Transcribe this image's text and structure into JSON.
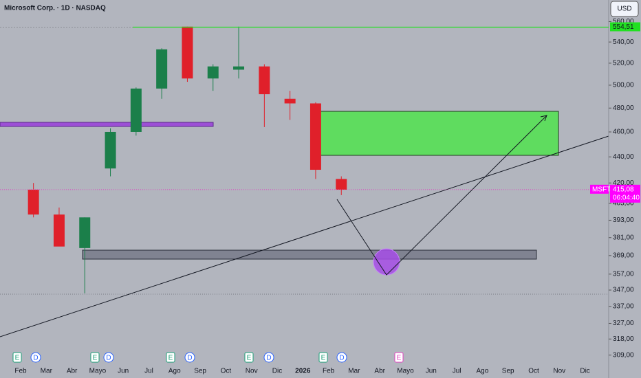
{
  "chart_data": {
    "type": "candlestick",
    "title": "Microsoft Corp. · 1D · NASDAQ",
    "currency": "USD",
    "symbol": "MSFT",
    "categories": [
      "Feb",
      "Mar",
      "Abr",
      "Mayo",
      "Jun",
      "Jul",
      "Ago",
      "Sep",
      "Oct",
      "Nov",
      "Dic",
      "2026",
      "Feb",
      "Mar",
      "Abr",
      "Mayo",
      "Jun",
      "Jul",
      "Ago",
      "Sep",
      "Oct",
      "Nov",
      "Dic"
    ],
    "open": [
      415,
      397,
      374,
      431,
      460,
      497,
      555,
      506,
      514,
      517,
      488,
      484,
      423,
      null,
      null,
      null,
      null,
      null,
      null,
      null,
      null,
      null,
      null
    ],
    "high": [
      420,
      402,
      395,
      463,
      498,
      534,
      555,
      519,
      555,
      519,
      495,
      485,
      425,
      null,
      null,
      null,
      null,
      null,
      null,
      null,
      null,
      null,
      null
    ],
    "low": [
      395,
      376,
      345,
      425,
      457,
      488,
      503,
      495,
      506,
      464,
      470,
      423,
      411,
      null,
      null,
      null,
      null,
      null,
      null,
      null,
      null,
      null,
      null
    ],
    "close": [
      397,
      375,
      395,
      460,
      497,
      533,
      506,
      517,
      517,
      492,
      484,
      430,
      415,
      null,
      null,
      null,
      null,
      null,
      null,
      null,
      null,
      null,
      null
    ],
    "up_color": "#1b7f4a",
    "down_color": "#e0202a",
    "log_scale": true,
    "ylim": [
      304,
      582
    ],
    "yticks": [
      {
        "value": 560,
        "label": "560,00"
      },
      {
        "value": 540,
        "label": "540,00"
      },
      {
        "value": 520,
        "label": "520,00"
      },
      {
        "value": 500,
        "label": "500,00"
      },
      {
        "value": 480,
        "label": "480,00"
      },
      {
        "value": 460,
        "label": "460,00"
      },
      {
        "value": 440,
        "label": "440,00"
      },
      {
        "value": 420,
        "label": "420,00"
      },
      {
        "value": 405,
        "label": "405,00"
      },
      {
        "value": 393,
        "label": "393,00"
      },
      {
        "value": 381,
        "label": "381,00"
      },
      {
        "value": 369,
        "label": "369,00"
      },
      {
        "value": 357,
        "label": "357,00"
      },
      {
        "value": 347,
        "label": "347,00"
      },
      {
        "value": 337,
        "label": "337,00"
      },
      {
        "value": 327,
        "label": "327,00"
      },
      {
        "value": 318,
        "label": "318,00"
      },
      {
        "value": 309,
        "label": "309,00"
      }
    ],
    "price_line": {
      "value": 554.51,
      "label": "554,51"
    },
    "last_price": {
      "value": 415.08,
      "label": "415,08"
    },
    "countdown": "06:04:40",
    "event_markers": [
      "E",
      "D",
      "E",
      "D",
      "E",
      "D",
      "E",
      "D",
      "E",
      "D",
      "E"
    ]
  }
}
